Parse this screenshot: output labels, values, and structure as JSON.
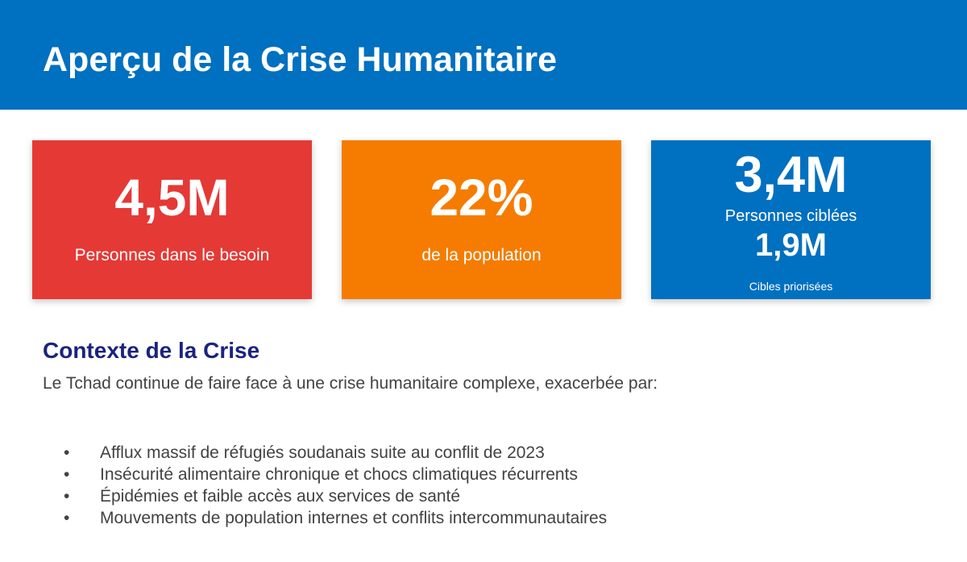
{
  "header": {
    "title": "Aperçu de la Crise Humanitaire"
  },
  "cards": {
    "people_in_need": {
      "value": "4,5M",
      "label": "Personnes dans le besoin",
      "color": "#e53935"
    },
    "population_share": {
      "value": "22%",
      "label": "de la population",
      "color": "#f57c00"
    },
    "targeted": {
      "value": "3,4M",
      "label": "Personnes ciblées",
      "secondary_value": "1,9M",
      "secondary_label": "Cibles priorisées",
      "color": "#0070c0"
    }
  },
  "context": {
    "title": "Contexte de la Crise",
    "intro": "Le Tchad continue de faire face à une crise humanitaire complexe, exacerbée par:",
    "bullet_symbol": "•",
    "bullets": [
      "Afflux massif de réfugiés soudanais suite au conflit de 2023",
      "Insécurité alimentaire chronique et chocs climatiques récurrents",
      "Épidémies et faible accès aux services de santé",
      "Mouvements de population internes et conflits intercommunautaires"
    ]
  },
  "colors": {
    "header_bg": "#0070c0",
    "section_title": "#1a237e",
    "body_text": "#424242"
  }
}
